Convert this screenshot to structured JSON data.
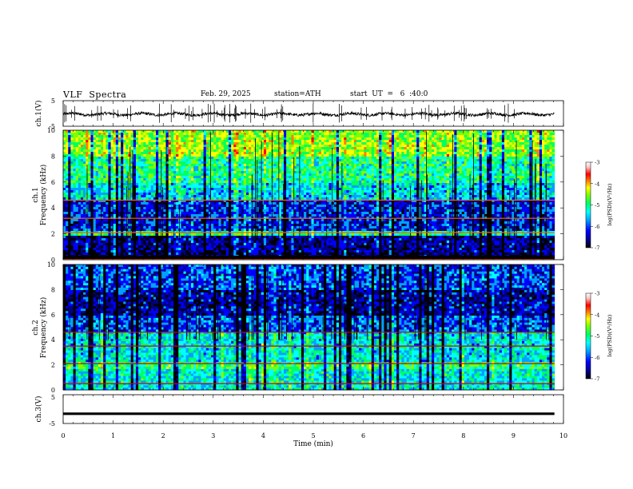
{
  "header": {
    "title": "VLF  Spectra",
    "date": "Feb. 29, 2025",
    "station": "station=ATH",
    "start_ut": "start  UT  =   6  :40:0"
  },
  "chart_data": [
    {
      "type": "line",
      "id": "ch1",
      "ylabel": "ch.1(V)",
      "ylim": [
        -5,
        5
      ],
      "yticks": [
        "5",
        "-5"
      ],
      "xlim": [
        0,
        10
      ],
      "baseline": -0.3
    },
    {
      "type": "heatmap",
      "id": "ch1-spectrogram",
      "ylabel_line1": "ch.1",
      "ylabel_line2": "Frequency (kHz)",
      "ylim": [
        0,
        10
      ],
      "yticks": [
        "0",
        "2",
        "4",
        "6",
        "8",
        "10"
      ],
      "xlim": [
        0,
        9.8
      ],
      "colorbar": {
        "label": "log(PSD)(V²/Hz)",
        "range": [
          -7,
          -3
        ],
        "ticks": [
          "-3",
          "-4",
          "-5",
          "-6",
          "-7"
        ]
      }
    },
    {
      "type": "heatmap",
      "id": "ch2-spectrogram",
      "ylabel_line1": "ch.2",
      "ylabel_line2": "Frequency (kHz)",
      "ylim": [
        0,
        10
      ],
      "yticks": [
        "0",
        "2",
        "4",
        "6",
        "8",
        "10"
      ],
      "xlim": [
        0,
        9.8
      ],
      "colorbar": {
        "label": "log(PSD)(V²/Hz)",
        "range": [
          -7,
          -3
        ],
        "ticks": [
          "-3",
          "-4",
          "-5",
          "-6",
          "-7"
        ]
      }
    },
    {
      "type": "line",
      "id": "ch3",
      "ylabel": "ch.3(V)",
      "ylim": [
        -5,
        5
      ],
      "yticks": [
        "5",
        "-5"
      ],
      "xlim": [
        0,
        10
      ],
      "baseline": -1.6
    }
  ],
  "xaxis": {
    "label": "Time  (min)",
    "range": [
      0,
      10
    ],
    "ticks": [
      "0",
      "1",
      "2",
      "3",
      "4",
      "5",
      "6",
      "7",
      "8",
      "9",
      "10"
    ]
  },
  "colors": {
    "colormap": [
      "#000000",
      "#000080",
      "#0000ff",
      "#00a0ff",
      "#00ffff",
      "#00ff60",
      "#80ff00",
      "#ffff00",
      "#ff8000",
      "#ff0000",
      "#ffe0e0",
      "#ffffff"
    ]
  }
}
